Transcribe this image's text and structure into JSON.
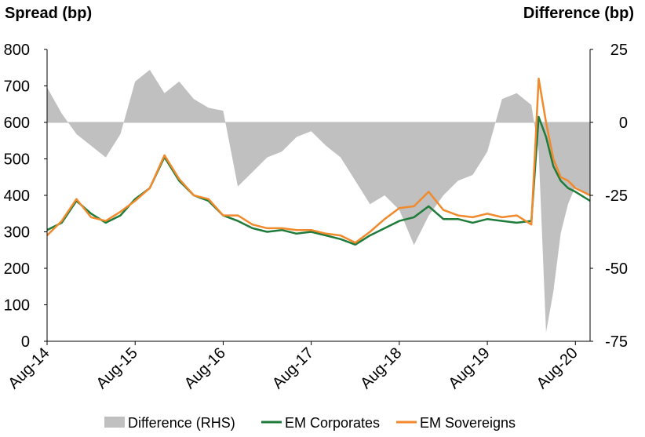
{
  "chart_data": {
    "type": "line",
    "left_axis_title": "Spread (bp)",
    "right_axis_title": "Difference (bp)",
    "y_left": {
      "min": 0,
      "max": 800,
      "ticks": [
        0,
        100,
        200,
        300,
        400,
        500,
        600,
        700,
        800
      ]
    },
    "y_right": {
      "min": -75,
      "max": 25,
      "ticks": [
        -75,
        -50,
        -25,
        0,
        25
      ]
    },
    "x_ticks": [
      "Aug-14",
      "Aug-15",
      "Aug-16",
      "Aug-17",
      "Aug-18",
      "Aug-19",
      "Aug-20"
    ],
    "x_range": [
      "2014-08",
      "2020-10"
    ],
    "colors": {
      "difference": "#c0c0c0",
      "corporates": "#1e7b3a",
      "sovereigns": "#f08a2c"
    },
    "legend_position": "bottom",
    "series": [
      {
        "name": "Difference (RHS)",
        "kind": "area",
        "axis": "right",
        "x": [
          "2014-08",
          "2014-10",
          "2014-12",
          "2015-02",
          "2015-04",
          "2015-06",
          "2015-08",
          "2015-10",
          "2015-12",
          "2016-02",
          "2016-04",
          "2016-06",
          "2016-08",
          "2016-10",
          "2016-12",
          "2017-02",
          "2017-04",
          "2017-06",
          "2017-08",
          "2017-10",
          "2017-12",
          "2018-02",
          "2018-04",
          "2018-06",
          "2018-08",
          "2018-10",
          "2018-12",
          "2019-02",
          "2019-04",
          "2019-06",
          "2019-08",
          "2019-10",
          "2019-12",
          "2020-02",
          "2020-03",
          "2020-04",
          "2020-05",
          "2020-06",
          "2020-07",
          "2020-08",
          "2020-10"
        ],
        "values": [
          12,
          3,
          -4,
          -8,
          -12,
          -4,
          14,
          18,
          10,
          14,
          8,
          5,
          4,
          -22,
          -17,
          -12,
          -10,
          -5,
          -3,
          -8,
          -12,
          -20,
          -28,
          -25,
          -30,
          -42,
          -32,
          -25,
          -20,
          -18,
          -10,
          8,
          10,
          6,
          -10,
          -72,
          -58,
          -38,
          -28,
          -22,
          -25
        ]
      },
      {
        "name": "EM Corporates",
        "kind": "line",
        "axis": "left",
        "x": [
          "2014-08",
          "2014-10",
          "2014-12",
          "2015-02",
          "2015-04",
          "2015-06",
          "2015-08",
          "2015-10",
          "2015-12",
          "2016-02",
          "2016-04",
          "2016-06",
          "2016-08",
          "2016-10",
          "2016-12",
          "2017-02",
          "2017-04",
          "2017-06",
          "2017-08",
          "2017-10",
          "2017-12",
          "2018-02",
          "2018-04",
          "2018-06",
          "2018-08",
          "2018-10",
          "2018-12",
          "2019-02",
          "2019-04",
          "2019-06",
          "2019-08",
          "2019-10",
          "2019-12",
          "2020-02",
          "2020-03",
          "2020-04",
          "2020-05",
          "2020-06",
          "2020-07",
          "2020-08",
          "2020-10"
        ],
        "values": [
          305,
          325,
          385,
          350,
          325,
          345,
          390,
          420,
          505,
          440,
          400,
          385,
          345,
          330,
          310,
          300,
          305,
          295,
          300,
          290,
          280,
          265,
          290,
          310,
          330,
          340,
          370,
          335,
          335,
          325,
          335,
          330,
          325,
          330,
          615,
          560,
          480,
          440,
          420,
          410,
          385
        ]
      },
      {
        "name": "EM Sovereigns",
        "kind": "line",
        "axis": "left",
        "x": [
          "2014-08",
          "2014-10",
          "2014-12",
          "2015-02",
          "2015-04",
          "2015-06",
          "2015-08",
          "2015-10",
          "2015-12",
          "2016-02",
          "2016-04",
          "2016-06",
          "2016-08",
          "2016-10",
          "2016-12",
          "2017-02",
          "2017-04",
          "2017-06",
          "2017-08",
          "2017-10",
          "2017-12",
          "2018-02",
          "2018-04",
          "2018-06",
          "2018-08",
          "2018-10",
          "2018-12",
          "2019-02",
          "2019-04",
          "2019-06",
          "2019-08",
          "2019-10",
          "2019-12",
          "2020-02",
          "2020-03",
          "2020-04",
          "2020-05",
          "2020-06",
          "2020-07",
          "2020-08",
          "2020-10"
        ],
        "values": [
          290,
          330,
          390,
          340,
          330,
          355,
          385,
          420,
          510,
          445,
          400,
          390,
          345,
          345,
          320,
          310,
          310,
          305,
          305,
          295,
          290,
          270,
          300,
          335,
          365,
          370,
          410,
          360,
          345,
          340,
          350,
          340,
          345,
          320,
          720,
          600,
          500,
          450,
          440,
          420,
          400
        ]
      }
    ]
  }
}
